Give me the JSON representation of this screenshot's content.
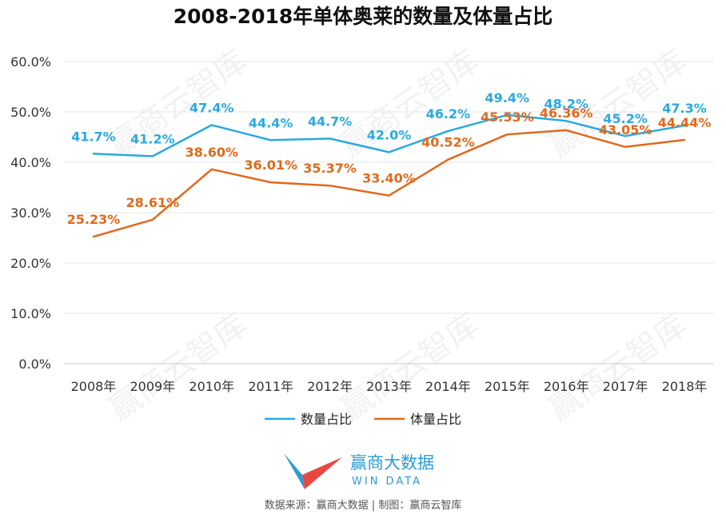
{
  "chart_data": {
    "type": "line",
    "title": "2008-2018年单体奥莱的数量及体量占比",
    "categories": [
      "2008年",
      "2009年",
      "2010年",
      "2011年",
      "2012年",
      "2013年",
      "2014年",
      "2015年",
      "2016年",
      "2017年",
      "2018年"
    ],
    "ylim": [
      0,
      60
    ],
    "yticks": [
      "0.0%",
      "10.0%",
      "20.0%",
      "30.0%",
      "40.0%",
      "50.0%",
      "60.0%"
    ],
    "grid": true,
    "legend_position": "bottom",
    "series": [
      {
        "name": "数量占比",
        "color": "#29a9e0",
        "values": [
          41.7,
          41.2,
          47.4,
          44.4,
          44.7,
          42.0,
          46.2,
          49.4,
          48.2,
          45.2,
          47.3
        ],
        "labels": [
          "41.7%",
          "41.2%",
          "47.4%",
          "44.4%",
          "44.7%",
          "42.0%",
          "46.2%",
          "49.4%",
          "48.2%",
          "45.2%",
          "47.3%"
        ]
      },
      {
        "name": "体量占比",
        "color": "#e0691c",
        "values": [
          25.23,
          28.61,
          38.6,
          36.01,
          35.37,
          33.4,
          40.52,
          45.53,
          46.36,
          43.05,
          44.44
        ],
        "labels": [
          "25.23%",
          "28.61%",
          "38.60%",
          "36.01%",
          "35.37%",
          "33.40%",
          "40.52%",
          "45.53%",
          "46.36%",
          "43.05%",
          "44.44%"
        ]
      }
    ]
  },
  "logo": {
    "cn": "赢商大数据",
    "en": "WIN DATA",
    "colors": {
      "blue": "#29a9e0",
      "red": "#e8483f"
    }
  },
  "watermark": "赢商云智库",
  "source": "数据来源：赢商大数据 | 制图：赢商云智库"
}
